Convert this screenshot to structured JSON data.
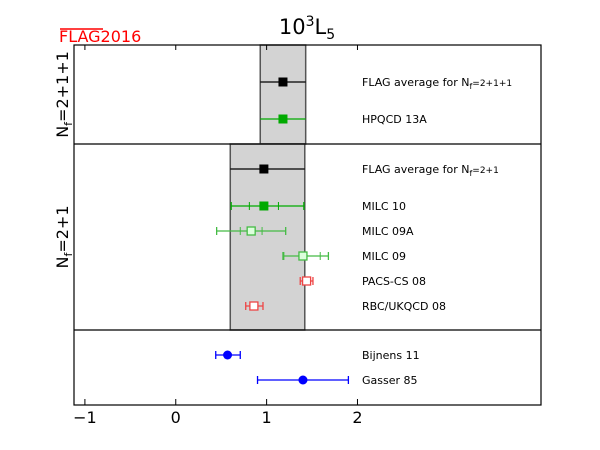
{
  "logo": "FLAG2016",
  "chart_data": {
    "type": "scatter",
    "title": "10³L₅",
    "title_base": "10",
    "title_exp": "3",
    "title_main": "L",
    "title_sub": "5",
    "xlabel": "",
    "xlim": [
      -1.12,
      4.02
    ],
    "xticks": [
      -1,
      0,
      1,
      2
    ],
    "xtick_labels": [
      "−1",
      "0",
      "1",
      "2"
    ],
    "panels": [
      {
        "label": "N",
        "label_sub": "f",
        "label_rest": "=2+1+1",
        "band": [
          0.93,
          1.43
        ]
      },
      {
        "label": "N",
        "label_sub": "f",
        "label_rest": "=2+1",
        "band": [
          0.6,
          1.42
        ]
      },
      {
        "label": "",
        "band": null
      }
    ],
    "points": [
      {
        "panel": 0,
        "name": "FLAG average for N",
        "name_sub": "f",
        "name_rest": "=2+1+1",
        "value": 1.18,
        "err": [
          0.93,
          1.43
        ],
        "inner": null,
        "color": "#000000",
        "marker": "square-filled"
      },
      {
        "panel": 0,
        "name": "HPQCD 13A",
        "value": 1.18,
        "err": [
          0.93,
          1.43
        ],
        "inner": null,
        "color": "#00aa00",
        "marker": "square-filled"
      },
      {
        "panel": 1,
        "name": "FLAG average for N",
        "name_sub": "f",
        "name_rest": "=2+1",
        "value": 0.97,
        "err": [
          0.6,
          1.42
        ],
        "inner": null,
        "color": "#000000",
        "marker": "square-filled"
      },
      {
        "panel": 1,
        "name": "MILC 10",
        "value": 0.97,
        "err": [
          0.61,
          1.41
        ],
        "inner": [
          0.81,
          1.13
        ],
        "color": "#00aa00",
        "marker": "square-filled"
      },
      {
        "panel": 1,
        "name": "MILC 09A",
        "value": 0.83,
        "err": [
          0.45,
          1.21
        ],
        "inner": [
          0.71,
          0.95
        ],
        "color": "#44bb44",
        "marker": "square-light"
      },
      {
        "panel": 1,
        "name": "MILC 09",
        "value": 1.4,
        "err": [
          1.18,
          1.68
        ],
        "inner": [
          1.19,
          1.59
        ],
        "color": "#44bb44",
        "marker": "square-light"
      },
      {
        "panel": 1,
        "name": "PACS-CS 08",
        "value": 1.44,
        "err": [
          1.37,
          1.51
        ],
        "inner": null,
        "color": "#ee4444",
        "marker": "square-open"
      },
      {
        "panel": 1,
        "name": "RBC/UKQCD 08",
        "value": 0.86,
        "err": [
          0.77,
          0.96
        ],
        "inner": null,
        "color": "#ee4444",
        "marker": "square-open"
      },
      {
        "panel": 2,
        "name": "Bijnens 11",
        "value": 0.57,
        "err": [
          0.44,
          0.71
        ],
        "inner": null,
        "color": "#0000ff",
        "marker": "circle"
      },
      {
        "panel": 2,
        "name": "Gasser 85",
        "value": 1.4,
        "err": [
          0.9,
          1.9
        ],
        "inner": null,
        "color": "#0000ff",
        "marker": "circle"
      }
    ]
  }
}
